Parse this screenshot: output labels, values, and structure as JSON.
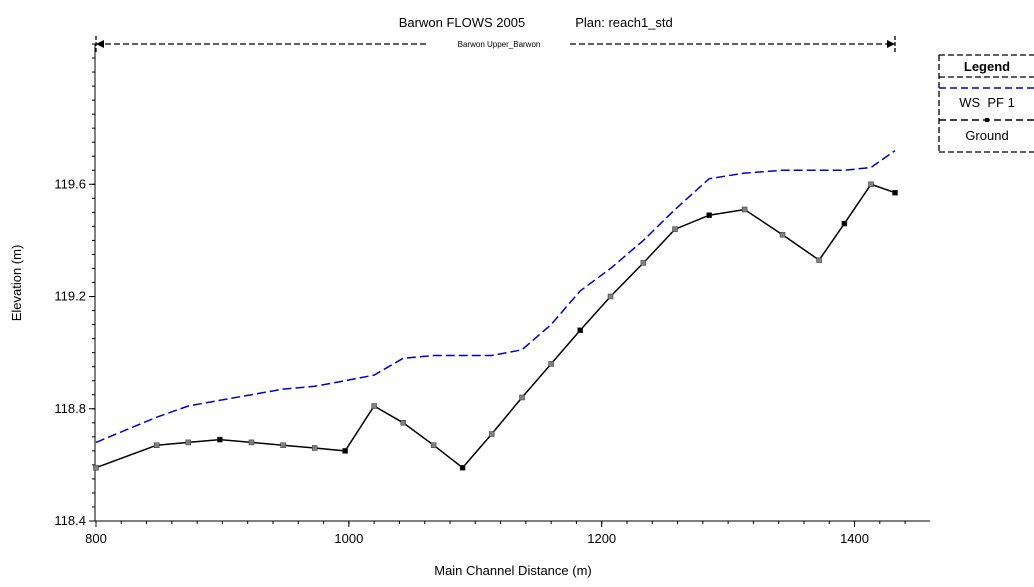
{
  "chart_data": {
    "type": "line",
    "title": "Barwon FLOWS 2005",
    "plan": "Plan: reach1_std",
    "reach_label": "Barwon Upper_Barwon",
    "xlabel": "Main Channel Distance (m)",
    "ylabel": "Elevation (m)",
    "xlim": [
      800,
      1450
    ],
    "ylim": [
      118.4,
      120.1
    ],
    "x_ticks": [
      800,
      1000,
      1200,
      1400
    ],
    "y_ticks": [
      118.4,
      118.8,
      119.2,
      119.6
    ],
    "x_tick_labels": [
      "800",
      "1000",
      "1200",
      "1400"
    ],
    "y_tick_labels": [
      "118.4",
      "118.8",
      "119.2",
      "119.6"
    ],
    "reach_extent": [
      800,
      1432
    ],
    "legend": {
      "title": "Legend",
      "position": "right",
      "entries": [
        "WS  PF 1",
        "Ground"
      ]
    },
    "series": [
      {
        "name": "WS  PF 1",
        "color": "#0000cc",
        "style": "dashed",
        "x": [
          800,
          848,
          873,
          898,
          923,
          948,
          973,
          997,
          1020,
          1043,
          1067,
          1090,
          1113,
          1137,
          1160,
          1183,
          1207,
          1233,
          1258,
          1285,
          1313,
          1343,
          1372,
          1392,
          1413,
          1432
        ],
        "y": [
          118.68,
          118.77,
          118.81,
          118.83,
          118.85,
          118.87,
          118.88,
          118.9,
          118.92,
          118.98,
          118.99,
          118.99,
          118.99,
          119.01,
          119.1,
          119.22,
          119.3,
          119.4,
          119.51,
          119.62,
          119.64,
          119.65,
          119.65,
          119.65,
          119.66,
          119.72
        ]
      },
      {
        "name": "Ground",
        "color": "#000000",
        "style": "solid",
        "x": [
          800,
          848,
          873,
          898,
          923,
          948,
          973,
          997,
          1020,
          1043,
          1067,
          1090,
          1113,
          1137,
          1160,
          1183,
          1207,
          1233,
          1258,
          1285,
          1313,
          1343,
          1372,
          1392,
          1413,
          1432
        ],
        "y": [
          118.59,
          118.67,
          118.68,
          118.69,
          118.68,
          118.67,
          118.66,
          118.65,
          118.81,
          118.75,
          118.67,
          118.59,
          118.71,
          118.84,
          118.96,
          119.08,
          119.2,
          119.32,
          119.44,
          119.49,
          119.51,
          119.42,
          119.33,
          119.46,
          119.6,
          119.57
        ]
      }
    ],
    "grid": false
  }
}
